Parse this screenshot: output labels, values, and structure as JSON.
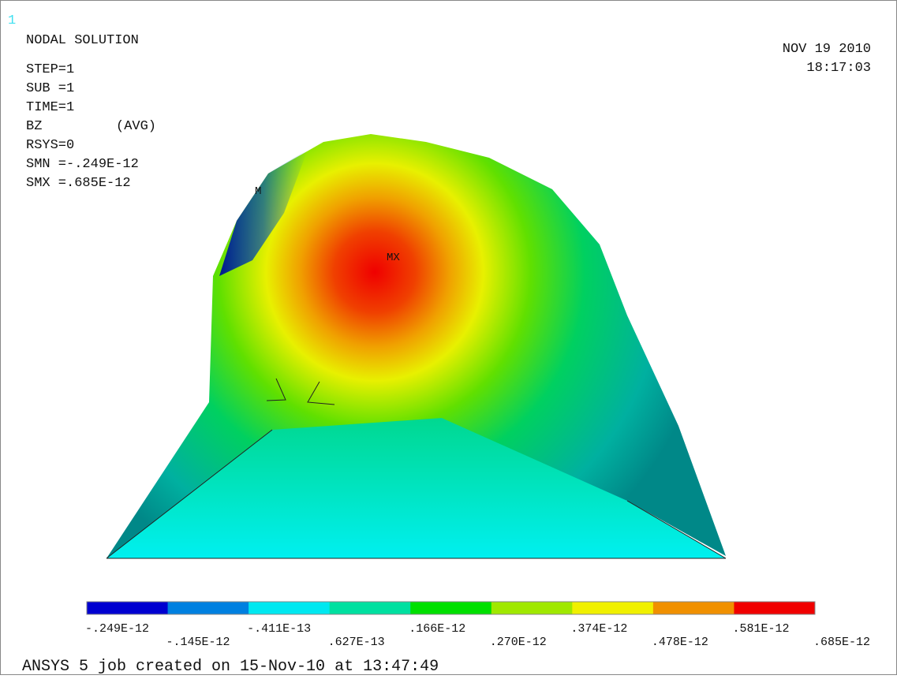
{
  "window_number": "1",
  "header": {
    "title": "NODAL SOLUTION",
    "lines": [
      "STEP=1",
      "SUB =1",
      "TIME=1",
      "BZ",
      "RSYS=0",
      "SMN =-.249E-12",
      "SMX =.685E-12"
    ],
    "avg": "(AVG)",
    "date": "NOV 19 2010",
    "time": "18:17:03"
  },
  "markers": {
    "max": "MX",
    "min": "M"
  },
  "legend": {
    "colors": [
      "#0000d0",
      "#0080e0",
      "#00e8f0",
      "#00e0a0",
      "#00e000",
      "#a0e800",
      "#f0f000",
      "#f09000",
      "#f00000"
    ],
    "labels": [
      "-.249E-12",
      "-.145E-12",
      "-.411E-13",
      ".627E-13",
      ".166E-12",
      ".270E-12",
      ".374E-12",
      ".478E-12",
      ".581E-12",
      ".685E-12"
    ]
  },
  "footer": "ANSYS 5 job created on 15-Nov-10 at 13:47:49"
}
